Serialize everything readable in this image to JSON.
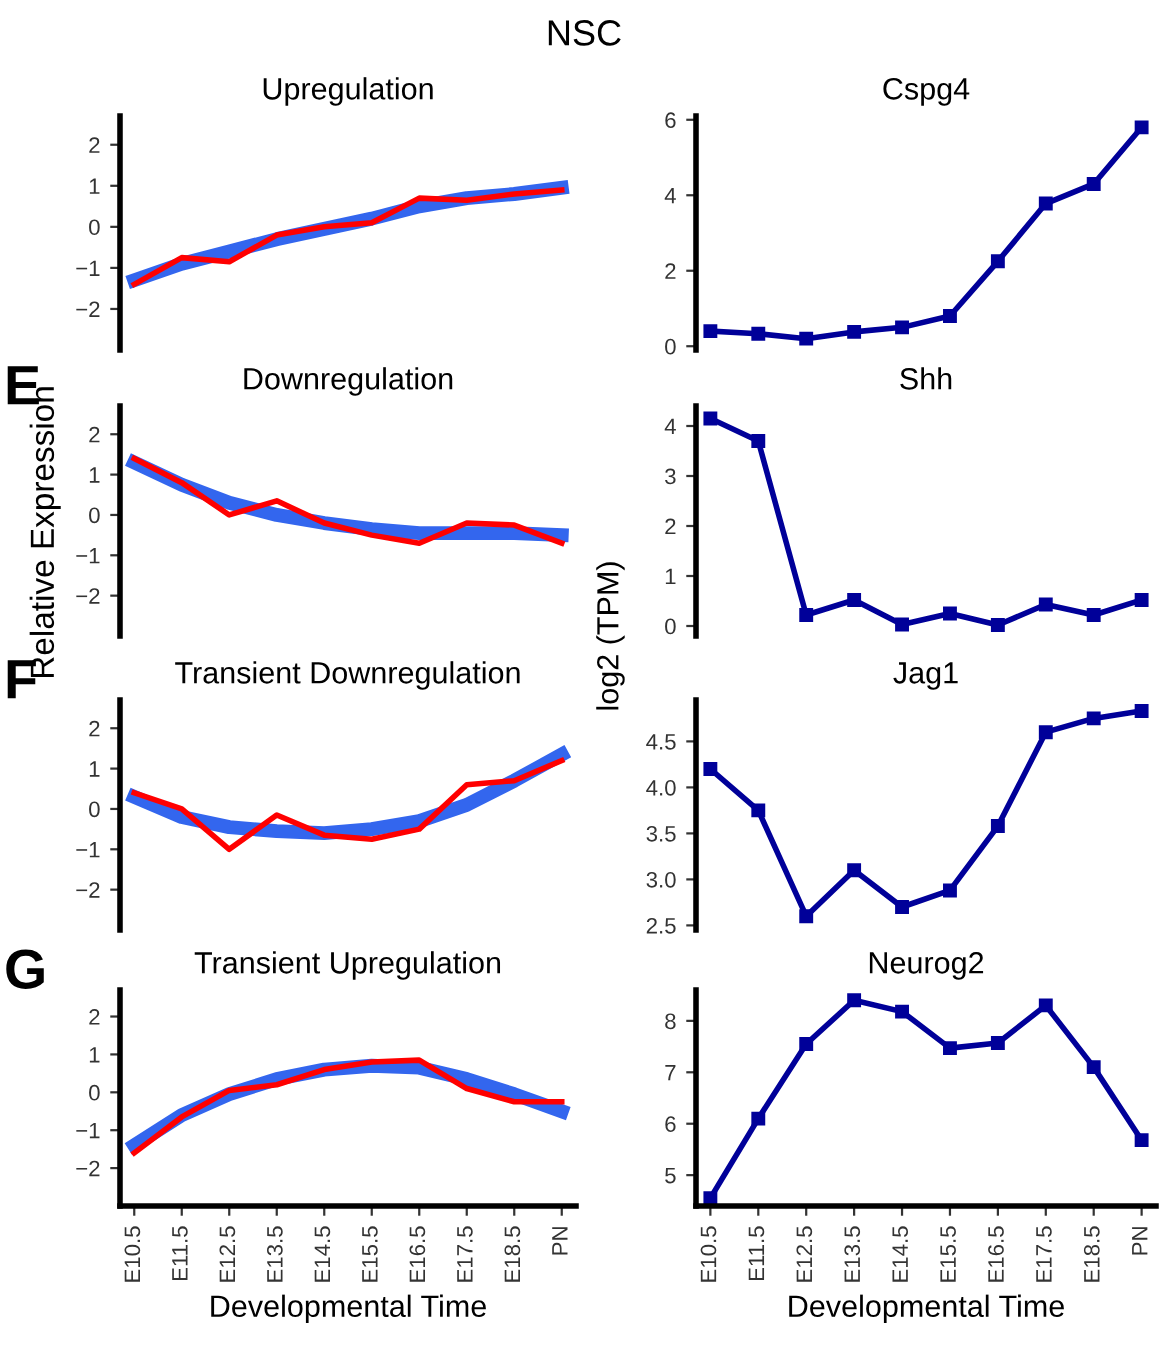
{
  "chart_data": [
    {
      "type": "line",
      "title": "Upregulation",
      "annotations": [
        "NSC"
      ],
      "categories": [
        null,
        null,
        null,
        null,
        null,
        null,
        null,
        null,
        null,
        null
      ],
      "ylim": [
        -3,
        2.7
      ],
      "yticks": [
        {
          "value": -2,
          "label": "−2"
        },
        {
          "value": -1,
          "label": "−1"
        },
        0,
        1,
        2
      ],
      "tick_labels": "y",
      "marker": "none",
      "line_style": "solid",
      "grid": false,
      "legend": false,
      "series": [
        {
          "color": "#3366ee",
          "values": [
            -1.3,
            -0.9,
            -0.6,
            -0.3,
            -0.05,
            0.2,
            0.5,
            0.7,
            0.8,
            0.95
          ]
        },
        {
          "color": "#ff0000",
          "values": [
            -1.4,
            -0.75,
            -0.85,
            -0.2,
            0.0,
            0.1,
            0.7,
            0.65,
            0.8,
            0.9
          ]
        }
      ]
    },
    {
      "type": "line",
      "title": "Downregulation",
      "ylabel": "Relative Expression",
      "annotations": [
        "E"
      ],
      "categories": [
        null,
        null,
        null,
        null,
        null,
        null,
        null,
        null,
        null,
        null
      ],
      "ylim": [
        -3,
        2.7
      ],
      "yticks": [
        {
          "value": -2,
          "label": "−2"
        },
        {
          "value": -1,
          "label": "−1"
        },
        0,
        1,
        2
      ],
      "tick_labels": "y",
      "marker": "none",
      "line_style": "solid",
      "grid": false,
      "legend": false,
      "series": [
        {
          "color": "#3366ee",
          "values": [
            1.3,
            0.75,
            0.3,
            0.0,
            -0.2,
            -0.35,
            -0.45,
            -0.45,
            -0.45,
            -0.5
          ]
        },
        {
          "color": "#ff0000",
          "values": [
            1.4,
            0.8,
            0.0,
            0.35,
            -0.2,
            -0.5,
            -0.7,
            -0.2,
            -0.25,
            -0.7
          ]
        }
      ]
    },
    {
      "type": "line",
      "title": "Transient Downregulation",
      "annotations": [
        "F"
      ],
      "categories": [
        null,
        null,
        null,
        null,
        null,
        null,
        null,
        null,
        null,
        null
      ],
      "ylim": [
        -3,
        2.7
      ],
      "yticks": [
        {
          "value": -2,
          "label": "−2"
        },
        {
          "value": -1,
          "label": "−1"
        },
        0,
        1,
        2
      ],
      "tick_labels": "y",
      "marker": "none",
      "line_style": "solid",
      "grid": false,
      "legend": false,
      "series": [
        {
          "color": "#3366ee",
          "values": [
            0.3,
            -0.2,
            -0.45,
            -0.55,
            -0.6,
            -0.5,
            -0.3,
            0.1,
            0.7,
            1.35
          ]
        },
        {
          "color": "#ff0000",
          "values": [
            0.4,
            0.0,
            -1.0,
            -0.15,
            -0.65,
            -0.75,
            -0.5,
            0.6,
            0.7,
            1.2
          ]
        }
      ]
    },
    {
      "type": "line",
      "title": "Transient Upregulation",
      "xlabel": "Developmental Time",
      "annotations": [
        "G"
      ],
      "categories": [
        "E10.5",
        "E11.5",
        "E12.5",
        "E13.5",
        "E14.5",
        "E15.5",
        "E16.5",
        "E17.5",
        "E18.5",
        "PN"
      ],
      "ylim": [
        -3,
        2.7
      ],
      "yticks": [
        {
          "value": -2,
          "label": "−2"
        },
        {
          "value": -1,
          "label": "−1"
        },
        0,
        1,
        2
      ],
      "marker": "none",
      "line_style": "solid",
      "grid": false,
      "legend": false,
      "series": [
        {
          "color": "#3366ee",
          "values": [
            -1.4,
            -0.6,
            -0.05,
            0.35,
            0.6,
            0.7,
            0.65,
            0.35,
            -0.05,
            -0.5
          ]
        },
        {
          "color": "#ff0000",
          "values": [
            -1.6,
            -0.65,
            0.05,
            0.2,
            0.6,
            0.8,
            0.85,
            0.1,
            -0.25,
            -0.25
          ]
        }
      ]
    },
    {
      "type": "line",
      "title": "Cspg4",
      "categories": [
        null,
        null,
        null,
        null,
        null,
        null,
        null,
        null,
        null,
        null
      ],
      "ylim": [
        -0.1,
        6.1
      ],
      "yticks": [
        0,
        2,
        4,
        6
      ],
      "tick_labels": "y",
      "marker": "square",
      "line_style": "solid",
      "grid": false,
      "legend": false,
      "series": [
        {
          "color": "#000099",
          "values": [
            0.4,
            0.33,
            0.2,
            0.38,
            0.5,
            0.8,
            2.25,
            3.78,
            4.3,
            5.8
          ]
        }
      ]
    },
    {
      "type": "line",
      "title": "Shh",
      "ylabel": "log2 (TPM)",
      "categories": [
        null,
        null,
        null,
        null,
        null,
        null,
        null,
        null,
        null,
        null
      ],
      "ylim": [
        -0.2,
        4.4
      ],
      "yticks": [
        0,
        1,
        2,
        3,
        4
      ],
      "tick_labels": "y",
      "marker": "square",
      "line_style": "solid",
      "grid": false,
      "legend": false,
      "series": [
        {
          "color": "#000099",
          "values": [
            4.15,
            3.7,
            0.22,
            0.52,
            0.03,
            0.25,
            0.02,
            0.43,
            0.22,
            0.52
          ]
        }
      ]
    },
    {
      "type": "line",
      "title": "Jag1",
      "categories": [
        null,
        null,
        null,
        null,
        null,
        null,
        null,
        null,
        null,
        null
      ],
      "ylim": [
        2.45,
        4.95
      ],
      "yticks": [
        {
          "value": 2.5,
          "label": "2.5"
        },
        {
          "value": 3.0,
          "label": "3.0"
        },
        {
          "value": 3.5,
          "label": "3.5"
        },
        {
          "value": 4.0,
          "label": "4.0"
        },
        {
          "value": 4.5,
          "label": "4.5"
        }
      ],
      "tick_labels": "y",
      "marker": "square",
      "line_style": "solid",
      "grid": false,
      "legend": false,
      "series": [
        {
          "color": "#000099",
          "values": [
            4.2,
            3.75,
            2.6,
            3.1,
            2.7,
            2.88,
            3.58,
            4.6,
            4.75,
            4.83
          ]
        }
      ]
    },
    {
      "type": "line",
      "title": "Neurog2",
      "xlabel": "Developmental Time",
      "categories": [
        "E10.5",
        "E11.5",
        "E12.5",
        "E13.5",
        "E14.5",
        "E15.5",
        "E16.5",
        "E17.5",
        "E18.5",
        "PN"
      ],
      "ylim": [
        4.4,
        8.6
      ],
      "yticks": [
        5,
        6,
        7,
        8
      ],
      "marker": "square",
      "line_style": "solid",
      "grid": false,
      "legend": false,
      "series": [
        {
          "color": "#000099",
          "values": [
            4.55,
            6.1,
            7.55,
            8.4,
            8.18,
            7.47,
            7.57,
            8.3,
            7.1,
            5.68
          ]
        }
      ]
    }
  ]
}
